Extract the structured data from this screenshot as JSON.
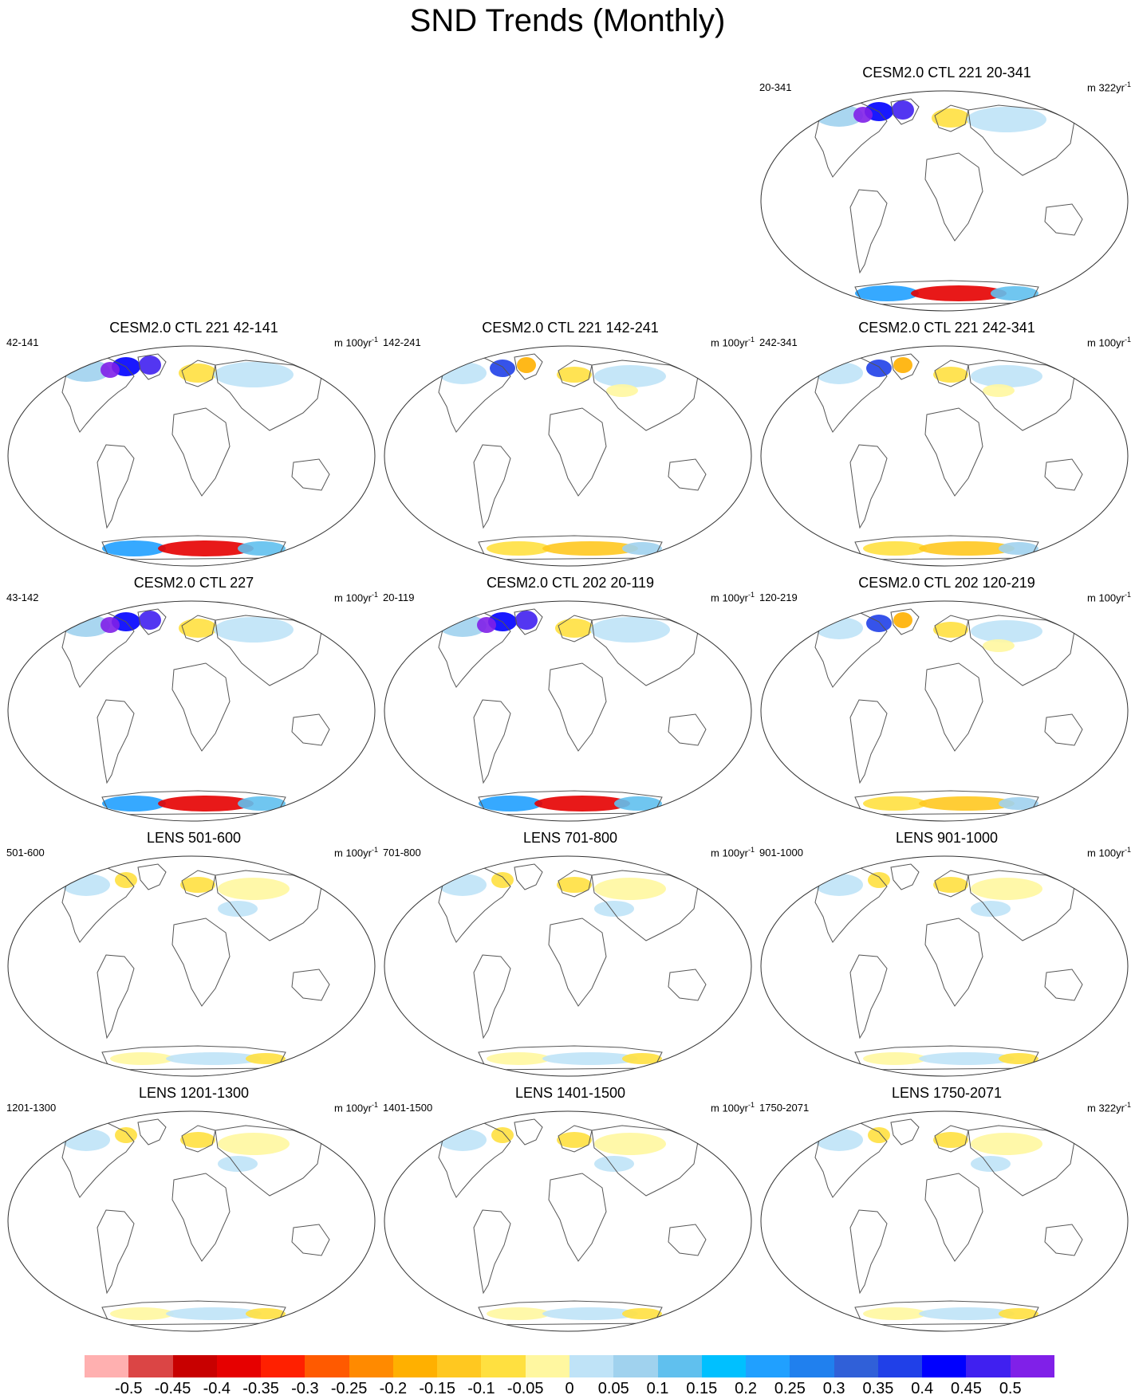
{
  "title": "SND Trends (Monthly)",
  "panels": [
    {
      "title": "CESM2.0 CTL 221 20-341",
      "left": "20-341",
      "unit_prefix": "m 322yr",
      "unit_exp": "-1",
      "pattern": "strong"
    },
    {
      "title": "CESM2.0 CTL 221 42-141",
      "left": "42-141",
      "unit_prefix": "m 100yr",
      "unit_exp": "-1",
      "pattern": "strong"
    },
    {
      "title": "CESM2.0 CTL 221 142-241",
      "left": "142-241",
      "unit_prefix": "m 100yr",
      "unit_exp": "-1",
      "pattern": "medium"
    },
    {
      "title": "CESM2.0 CTL 221 242-341",
      "left": "242-341",
      "unit_prefix": "m 100yr",
      "unit_exp": "-1",
      "pattern": "medium"
    },
    {
      "title": "CESM2.0 CTL 227",
      "left": "43-142",
      "unit_prefix": "m 100yr",
      "unit_exp": "-1",
      "pattern": "strong"
    },
    {
      "title": "CESM2.0 CTL 202 20-119",
      "left": "20-119",
      "unit_prefix": "m 100yr",
      "unit_exp": "-1",
      "pattern": "strong"
    },
    {
      "title": "CESM2.0 CTL 202 120-219",
      "left": "120-219",
      "unit_prefix": "m 100yr",
      "unit_exp": "-1",
      "pattern": "medium"
    },
    {
      "title": "LENS 501-600",
      "left": "501-600",
      "unit_prefix": "m 100yr",
      "unit_exp": "-1",
      "pattern": "weak"
    },
    {
      "title": "LENS 701-800",
      "left": "701-800",
      "unit_prefix": "m 100yr",
      "unit_exp": "-1",
      "pattern": "weak"
    },
    {
      "title": "LENS 901-1000",
      "left": "901-1000",
      "unit_prefix": "m 100yr",
      "unit_exp": "-1",
      "pattern": "weak"
    },
    {
      "title": "LENS 1201-1300",
      "left": "1201-1300",
      "unit_prefix": "m 100yr",
      "unit_exp": "-1",
      "pattern": "weak"
    },
    {
      "title": "LENS 1401-1500",
      "left": "1401-1500",
      "unit_prefix": "m 100yr",
      "unit_exp": "-1",
      "pattern": "weak"
    },
    {
      "title": "LENS 1750-2071",
      "left": "1750-2071",
      "unit_prefix": "m 322yr",
      "unit_exp": "-1",
      "pattern": "weak"
    }
  ],
  "colorbar": {
    "labels": [
      "-0.5",
      "-0.45",
      "-0.4",
      "-0.35",
      "-0.3",
      "-0.25",
      "-0.2",
      "-0.15",
      "-0.1",
      "-0.05",
      "0",
      "0.05",
      "0.1",
      "0.15",
      "0.2",
      "0.25",
      "0.3",
      "0.35",
      "0.4",
      "0.45",
      "0.5"
    ],
    "colors": [
      "#ffb0b0",
      "#db4545",
      "#c80000",
      "#e60000",
      "#ff2000",
      "#ff5a00",
      "#ff8a00",
      "#ffb000",
      "#ffc820",
      "#ffe040",
      "#fff7a0",
      "#bfe3f7",
      "#a0d2ee",
      "#60c0ee",
      "#00c0ff",
      "#20a0ff",
      "#2080ee",
      "#3060d8",
      "#2040e8",
      "#0000ff",
      "#4020f0",
      "#8020e8"
    ]
  }
}
